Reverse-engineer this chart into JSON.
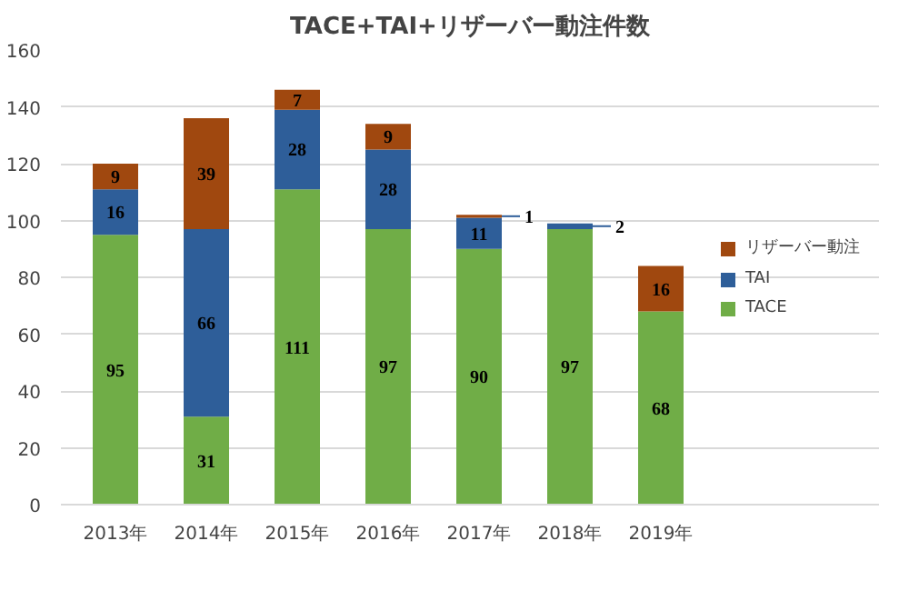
{
  "chart_data": {
    "type": "bar",
    "title": "TACE+TAI+リザーバー動注件数",
    "stacked": true,
    "categories": [
      "2013年",
      "2014年",
      "2015年",
      "2016年",
      "2017年",
      "2018年",
      "2019年"
    ],
    "series": [
      {
        "name": "TACE",
        "color": "#70ad47",
        "values": [
          95,
          31,
          111,
          97,
          90,
          97,
          68
        ]
      },
      {
        "name": "TAI",
        "color": "#2e5e99",
        "values": [
          16,
          66,
          28,
          28,
          11,
          2,
          null
        ]
      },
      {
        "name": "リザーバー動注",
        "color": "#a0480f",
        "values": [
          9,
          39,
          7,
          9,
          1,
          null,
          16
        ]
      }
    ],
    "ylim": [
      0,
      160
    ],
    "yticks": [
      0,
      20,
      40,
      60,
      80,
      100,
      120,
      140,
      160
    ],
    "grid": "y",
    "legend": "right",
    "data_labels": true
  }
}
